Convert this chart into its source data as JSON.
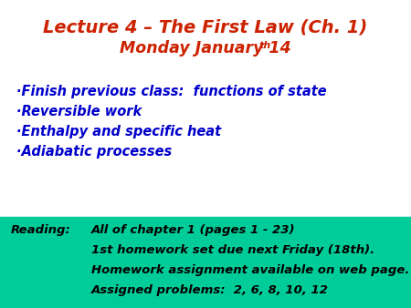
{
  "title_line1": "Lecture 4 – The First Law (Ch. 1)",
  "title_line2": "Monday January 14",
  "title_superscript": "th",
  "title_color": "#cc2200",
  "bullet_color": "#0000cc",
  "bullet_items": [
    "·Finish previous class:  functions of state",
    "·Reversible work",
    "·Enthalpy and specific heat",
    "·Adiabatic processes"
  ],
  "reading_bg_color": "#00cc99",
  "reading_label": "Reading:",
  "reading_text_lines": [
    "All of chapter 1 (pages 1 - 23)",
    "1st homework set due next Friday (18th).",
    "Homework assignment available on web page.",
    "Assigned problems:  2, 6, 8, 10, 12"
  ],
  "reading_text_color": "#000000",
  "bg_color": "#ffffff",
  "fig_width": 4.5,
  "fig_height": 3.38,
  "dpi": 100
}
